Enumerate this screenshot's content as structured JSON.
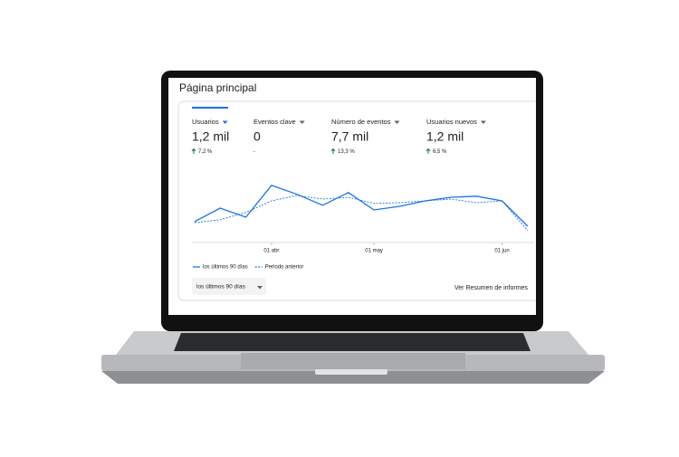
{
  "header": {
    "title": "Página principal"
  },
  "metrics": [
    {
      "label": "Usuarios",
      "value": "1,2 mil",
      "change": "7,2 %"
    },
    {
      "label": "Eventos clave",
      "value": "0",
      "change": "-"
    },
    {
      "label": "Número de eventos",
      "value": "7,7 mil",
      "change": "13,3 %"
    },
    {
      "label": "Usuarios nuevos",
      "value": "1,2 mil",
      "change": "6,5 %"
    }
  ],
  "chart_data": {
    "type": "line",
    "categories": [
      null,
      null,
      null,
      "01 abr",
      null,
      null,
      null,
      "01 may",
      null,
      null,
      null,
      null,
      "01 jun",
      null
    ],
    "series": [
      {
        "name": "los últimos 90 días",
        "color": "#1a73e8",
        "style": "solid",
        "values": [
          5.8,
          9.5,
          7,
          15.8,
          13.3,
          10.3,
          13.8,
          9,
          10,
          11.5,
          12.5,
          12.8,
          11.5,
          4.5
        ]
      },
      {
        "name": "Periodo anterior",
        "color": "#1a73e8",
        "style": "dotted",
        "values": [
          5.5,
          6.3,
          8.3,
          11.5,
          13,
          12,
          12.5,
          10.8,
          11,
          11.5,
          12,
          11,
          11.5,
          3.3
        ]
      }
    ],
    "ylim": [
      0,
      20
    ]
  },
  "footer": {
    "range_selector": "los últimos 90 días",
    "link": "Ver Resumen de informes"
  }
}
